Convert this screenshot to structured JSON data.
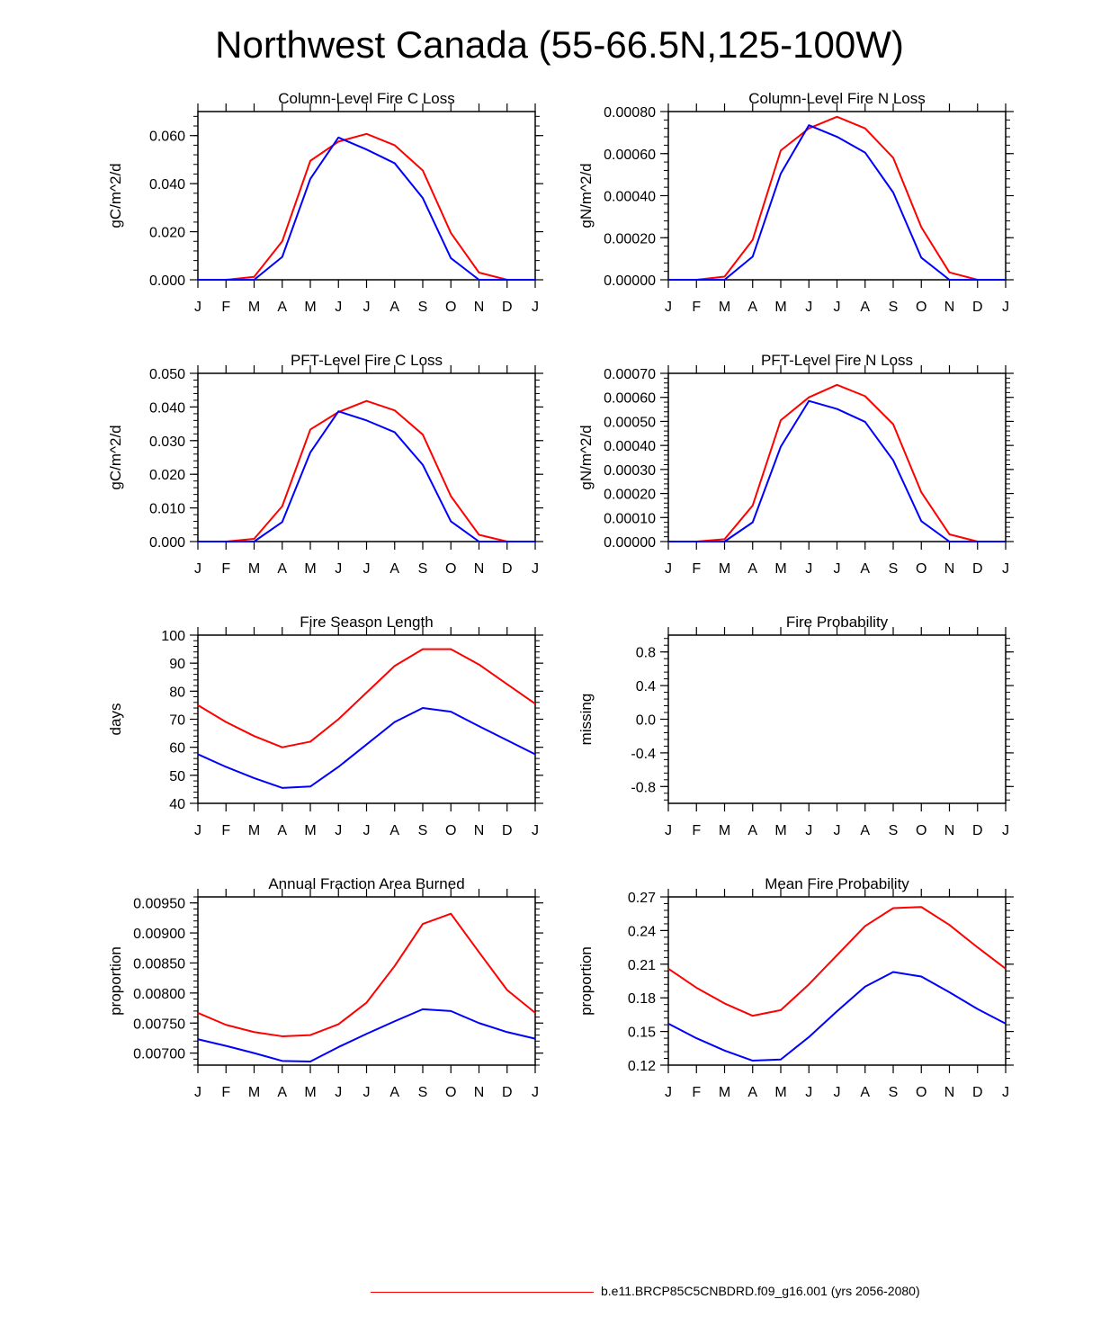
{
  "title": "Northwest Canada (55-66.5N,125-100W)",
  "colors": {
    "case": "#ff0000",
    "control": "#0000ff",
    "axis": "#000000"
  },
  "legend": {
    "label": "b.e11.BRCP85C5CNBDRD.f09_g16.001 (yrs 2056-2080)"
  },
  "chart_data": [
    {
      "type": "line",
      "title": "Column-Level Fire C Loss",
      "ylabel": "gC/m^2/d",
      "categories": [
        "J",
        "F",
        "M",
        "A",
        "M",
        "J",
        "J",
        "A",
        "S",
        "O",
        "N",
        "D",
        "J"
      ],
      "ylim": [
        0,
        0.07
      ],
      "yticks": [
        0,
        0.02,
        0.04,
        0.06
      ],
      "ytick_labels": [
        "0.000",
        "0.020",
        "0.040",
        "0.060"
      ],
      "series": [
        {
          "name": "red",
          "values": [
            0,
            0,
            0.0012,
            0.016,
            0.0495,
            0.0575,
            0.0607,
            0.056,
            0.0455,
            0.0195,
            0.003,
            0,
            0
          ]
        },
        {
          "name": "blue",
          "values": [
            0,
            0,
            0,
            0.0095,
            0.042,
            0.0592,
            0.0542,
            0.0485,
            0.034,
            0.009,
            0,
            0,
            0
          ]
        }
      ]
    },
    {
      "type": "line",
      "title": "Column-Level Fire N Loss",
      "ylabel": "gN/m^2/d",
      "categories": [
        "J",
        "F",
        "M",
        "A",
        "M",
        "J",
        "J",
        "A",
        "S",
        "O",
        "N",
        "D",
        "J"
      ],
      "ylim": [
        0,
        0.0008
      ],
      "yticks": [
        0,
        0.0002,
        0.0004,
        0.0006,
        0.0008
      ],
      "ytick_labels": [
        "0.00000",
        "0.00020",
        "0.00040",
        "0.00060",
        "0.00080"
      ],
      "series": [
        {
          "name": "red",
          "values": [
            0,
            0,
            1.5e-05,
            0.00019,
            0.000615,
            0.00072,
            0.000775,
            0.00072,
            0.00058,
            0.00025,
            3.5e-05,
            0,
            0
          ]
        },
        {
          "name": "blue",
          "values": [
            0,
            0,
            0,
            0.00011,
            0.000505,
            0.000735,
            0.00068,
            0.000605,
            0.000415,
            0.000105,
            0,
            0,
            0
          ]
        }
      ]
    },
    {
      "type": "line",
      "title": "PFT-Level Fire C Loss",
      "ylabel": "gC/m^2/d",
      "categories": [
        "J",
        "F",
        "M",
        "A",
        "M",
        "J",
        "J",
        "A",
        "S",
        "O",
        "N",
        "D",
        "J"
      ],
      "ylim": [
        0,
        0.05
      ],
      "yticks": [
        0,
        0.01,
        0.02,
        0.03,
        0.04,
        0.05
      ],
      "ytick_labels": [
        "0.000",
        "0.010",
        "0.020",
        "0.030",
        "0.040",
        "0.050"
      ],
      "series": [
        {
          "name": "red",
          "values": [
            0,
            0,
            0.0008,
            0.0105,
            0.0333,
            0.0385,
            0.0418,
            0.039,
            0.0318,
            0.0135,
            0.002,
            0,
            0
          ]
        },
        {
          "name": "blue",
          "values": [
            0,
            0,
            0,
            0.0058,
            0.0265,
            0.0387,
            0.036,
            0.0325,
            0.0228,
            0.006,
            0,
            0,
            0
          ]
        }
      ]
    },
    {
      "type": "line",
      "title": "PFT-Level Fire N Loss",
      "ylabel": "gN/m^2/d",
      "categories": [
        "J",
        "F",
        "M",
        "A",
        "M",
        "J",
        "J",
        "A",
        "S",
        "O",
        "N",
        "D",
        "J"
      ],
      "ylim": [
        0,
        0.0007
      ],
      "yticks": [
        0,
        0.0001,
        0.0002,
        0.0003,
        0.0004,
        0.0005,
        0.0006,
        0.0007
      ],
      "ytick_labels": [
        "0.00000",
        "0.00010",
        "0.00020",
        "0.00030",
        "0.00040",
        "0.00050",
        "0.00060",
        "0.00070"
      ],
      "series": [
        {
          "name": "red",
          "values": [
            0,
            0,
            1e-05,
            0.00015,
            0.000505,
            0.0006,
            0.000652,
            0.000605,
            0.000488,
            0.000205,
            3e-05,
            0,
            0
          ]
        },
        {
          "name": "blue",
          "values": [
            0,
            0,
            0,
            8e-05,
            0.000395,
            0.000585,
            0.000552,
            0.000498,
            0.000338,
            8.5e-05,
            0,
            0,
            0
          ]
        }
      ]
    },
    {
      "type": "line",
      "title": "Fire Season Length",
      "ylabel": "days",
      "categories": [
        "J",
        "F",
        "M",
        "A",
        "M",
        "J",
        "J",
        "A",
        "S",
        "O",
        "N",
        "D",
        "J"
      ],
      "ylim": [
        40,
        100
      ],
      "yticks": [
        40,
        50,
        60,
        70,
        80,
        90,
        100
      ],
      "ytick_labels": [
        "40",
        "50",
        "60",
        "70",
        "80",
        "90",
        "100"
      ],
      "series": [
        {
          "name": "red",
          "values": [
            75,
            69,
            64,
            60,
            62,
            70,
            79.5,
            89,
            95,
            95,
            89.5,
            82.5,
            75.5
          ]
        },
        {
          "name": "blue",
          "values": [
            57.5,
            53,
            49,
            45.5,
            46,
            53,
            61,
            69,
            74,
            72.7,
            67.5,
            62.5,
            57.5
          ]
        }
      ]
    },
    {
      "type": "line",
      "title": "Fire Probability",
      "ylabel": "missing",
      "categories": [
        "J",
        "F",
        "M",
        "A",
        "M",
        "J",
        "J",
        "A",
        "S",
        "O",
        "N",
        "D",
        "J"
      ],
      "ylim": [
        -1,
        1
      ],
      "yticks": [
        -0.8,
        -0.4,
        0,
        0.4,
        0.8
      ],
      "ytick_labels": [
        "-0.8",
        "-0.4",
        "0.0",
        "0.4",
        "0.8"
      ],
      "series": []
    },
    {
      "type": "line",
      "title": "Annual Fraction Area Burned",
      "ylabel": "proportion",
      "categories": [
        "J",
        "F",
        "M",
        "A",
        "M",
        "J",
        "J",
        "A",
        "S",
        "O",
        "N",
        "D",
        "J"
      ],
      "ylim": [
        0.0068,
        0.0096
      ],
      "yticks": [
        0.007,
        0.0075,
        0.008,
        0.0085,
        0.009,
        0.0095
      ],
      "ytick_labels": [
        "0.00700",
        "0.00750",
        "0.00800",
        "0.00850",
        "0.00900",
        "0.00950"
      ],
      "series": [
        {
          "name": "red",
          "values": [
            0.00767,
            0.00747,
            0.00735,
            0.00728,
            0.0073,
            0.00748,
            0.00784,
            0.00845,
            0.00915,
            0.00932,
            0.00868,
            0.00805,
            0.00767
          ]
        },
        {
          "name": "blue",
          "values": [
            0.00723,
            0.00712,
            0.007,
            0.00687,
            0.00686,
            0.0071,
            0.00732,
            0.00753,
            0.00773,
            0.0077,
            0.0075,
            0.00735,
            0.00724
          ]
        }
      ]
    },
    {
      "type": "line",
      "title": "Mean Fire Probability",
      "ylabel": "proportion",
      "categories": [
        "J",
        "F",
        "M",
        "A",
        "M",
        "J",
        "J",
        "A",
        "S",
        "O",
        "N",
        "D",
        "J"
      ],
      "ylim": [
        0.12,
        0.27
      ],
      "yticks": [
        0.12,
        0.15,
        0.18,
        0.21,
        0.24,
        0.27
      ],
      "ytick_labels": [
        "0.12",
        "0.15",
        "0.18",
        "0.21",
        "0.24",
        "0.27"
      ],
      "series": [
        {
          "name": "red",
          "values": [
            0.206,
            0.189,
            0.175,
            0.164,
            0.169,
            0.192,
            0.218,
            0.244,
            0.26,
            0.261,
            0.245,
            0.225,
            0.206
          ]
        },
        {
          "name": "blue",
          "values": [
            0.157,
            0.144,
            0.133,
            0.124,
            0.125,
            0.145,
            0.168,
            0.19,
            0.203,
            0.199,
            0.185,
            0.17,
            0.157
          ]
        }
      ]
    }
  ]
}
